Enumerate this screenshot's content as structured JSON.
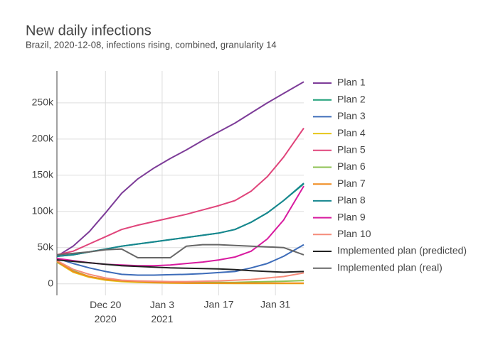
{
  "chart_data": {
    "type": "line",
    "title": "New daily infections",
    "subtitle": "Brazil, 2020-12-08, infections rising, combined, granularity 14",
    "x": [
      "2020-12-08",
      "2020-12-12",
      "2020-12-16",
      "2020-12-20",
      "2020-12-24",
      "2020-12-28",
      "2021-01-01",
      "2021-01-05",
      "2021-01-09",
      "2021-01-13",
      "2021-01-17",
      "2021-01-21",
      "2021-01-25",
      "2021-01-29",
      "2021-02-02",
      "2021-02-07"
    ],
    "xlim": [
      "2020-12-08",
      "2021-02-07"
    ],
    "xticks": [
      {
        "value": "2020-12-20",
        "label": "Dec 20\n2020"
      },
      {
        "value": "2021-01-03",
        "label": "Jan 3\n2021"
      },
      {
        "value": "2021-01-17",
        "label": "Jan 17"
      },
      {
        "value": "2021-01-31",
        "label": "Jan 31"
      }
    ],
    "ylim": [
      -16000,
      294000
    ],
    "yticks": [
      {
        "value": 0,
        "label": "0"
      },
      {
        "value": 50000,
        "label": "50k"
      },
      {
        "value": 100000,
        "label": "100k"
      },
      {
        "value": 150000,
        "label": "150k"
      },
      {
        "value": 200000,
        "label": "200k"
      },
      {
        "value": 250000,
        "label": "250k"
      }
    ],
    "grid": true,
    "legend": "right",
    "series": [
      {
        "name": "Plan 1",
        "color": "#7d3c98",
        "values": [
          38000,
          52000,
          72000,
          98000,
          125000,
          145000,
          160000,
          173000,
          185000,
          198000,
          210000,
          222000,
          236000,
          250000,
          263000,
          279000
        ]
      },
      {
        "name": "Plan 2",
        "color": "#1b9e77",
        "values": [
          38000,
          40000,
          44000,
          48000,
          52000,
          55000,
          58000,
          61000,
          64000,
          67000,
          70000,
          75000,
          85000,
          98000,
          115000,
          138000
        ]
      },
      {
        "name": "Plan 3",
        "color": "#3d6cb9",
        "values": [
          35000,
          28000,
          22000,
          17000,
          13000,
          12000,
          12000,
          12500,
          13000,
          14000,
          15500,
          17000,
          22000,
          28000,
          38000,
          54000
        ]
      },
      {
        "name": "Plan 4",
        "color": "#e6c619",
        "values": [
          30000,
          16000,
          9000,
          5000,
          3000,
          2000,
          1500,
          1000,
          800,
          700,
          600,
          500,
          500,
          500,
          500,
          500
        ]
      },
      {
        "name": "Plan 5",
        "color": "#e0457b",
        "values": [
          40000,
          45000,
          55000,
          65000,
          75000,
          81000,
          86000,
          91000,
          96000,
          102000,
          108000,
          115000,
          128000,
          148000,
          175000,
          215000
        ]
      },
      {
        "name": "Plan 6",
        "color": "#8cc152",
        "values": [
          30000,
          18000,
          10000,
          6000,
          4000,
          3000,
          2000,
          2000,
          2000,
          2000,
          2000,
          2000,
          2500,
          3000,
          3500,
          4500
        ]
      },
      {
        "name": "Plan 7",
        "color": "#f08a1c",
        "values": [
          31000,
          17000,
          10000,
          6000,
          4000,
          3000,
          2000,
          1500,
          1000,
          1000,
          1000,
          1000,
          1000,
          1000,
          1000,
          1000
        ]
      },
      {
        "name": "Plan 8",
        "color": "#16868f",
        "values": [
          38000,
          40000,
          44000,
          48000,
          52000,
          55000,
          58000,
          61000,
          64000,
          67000,
          70000,
          75000,
          85000,
          98000,
          115000,
          139000
        ]
      },
      {
        "name": "Plan 9",
        "color": "#d81b9f",
        "values": [
          35000,
          32000,
          29000,
          27000,
          26000,
          25000,
          25000,
          26000,
          28000,
          30000,
          33000,
          37000,
          45000,
          62000,
          88000,
          135000
        ]
      },
      {
        "name": "Plan 10",
        "color": "#f58b7a",
        "values": [
          32000,
          20000,
          13000,
          8000,
          5000,
          4000,
          3500,
          3000,
          3000,
          3500,
          4000,
          5000,
          6000,
          8000,
          10000,
          15000
        ]
      },
      {
        "name": "Implemented plan (predicted)",
        "color": "#222222",
        "values": [
          33000,
          31000,
          29000,
          27000,
          25000,
          24000,
          23000,
          22000,
          21500,
          21000,
          20500,
          19500,
          18000,
          17000,
          16000,
          17000
        ]
      },
      {
        "name": "Implemented plan (real)",
        "color": "#666666",
        "values": [
          40000,
          42000,
          44000,
          47000,
          48000,
          36000,
          36000,
          36000,
          52000,
          54000,
          54000,
          53000,
          52000,
          51000,
          50000,
          40000
        ]
      }
    ]
  }
}
